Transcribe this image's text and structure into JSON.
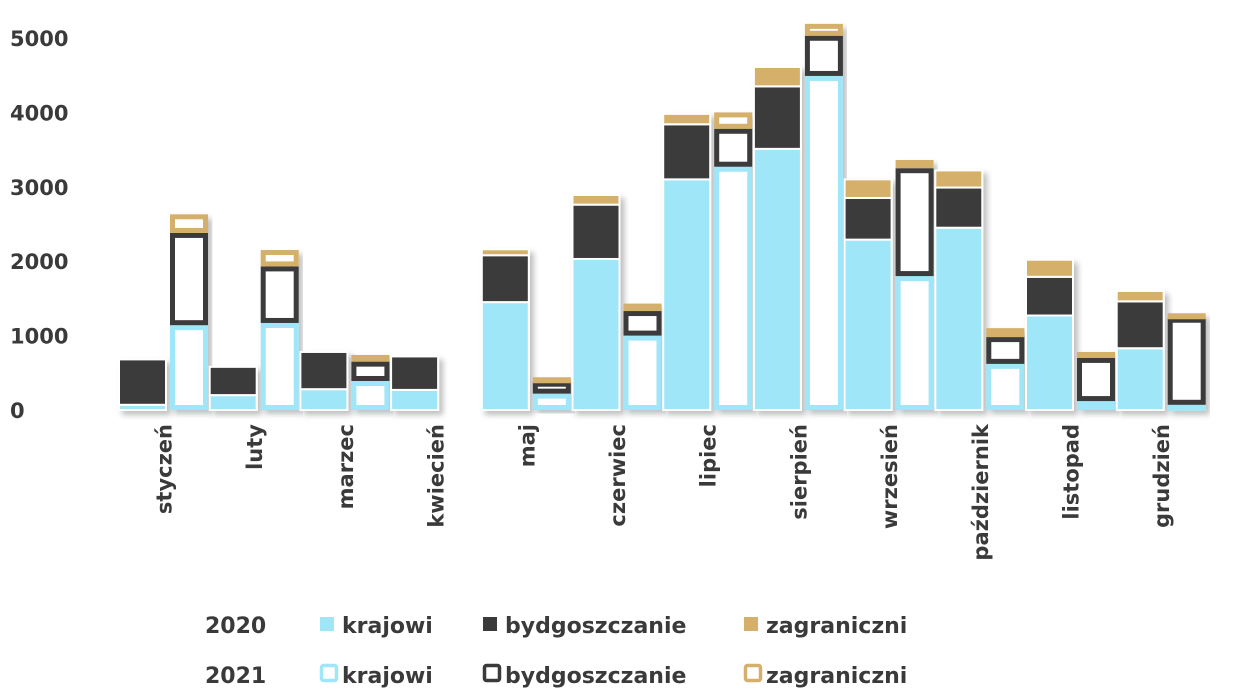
{
  "chart_data": {
    "type": "bar",
    "stacked": true,
    "grouped_by_year": true,
    "categories": [
      "styczeń",
      "luty",
      "marzec",
      "kwiecień",
      "maj",
      "czerwiec",
      "lipiec",
      "sierpień",
      "wrzesień",
      "październik",
      "listopad",
      "grudzień"
    ],
    "yticks": [
      "0",
      "1000",
      "2000",
      "3000",
      "4000",
      "5000"
    ],
    "ylim": [
      0,
      5200
    ],
    "series_names": [
      "krajowi",
      "bydgoszczanie",
      "zagraniczni"
    ],
    "colors": {
      "krajowi": "#9ee6f8",
      "bydgoszczanie": "#3a3a3a",
      "zagraniczni": "#d4b06a"
    },
    "years": [
      {
        "label": "2020",
        "style": "filled",
        "series": [
          {
            "name": "krajowi",
            "values": [
              70,
              200,
              280,
              270,
              1450,
              2030,
              3100,
              3510,
              2290,
              2450,
              1270,
              830
            ]
          },
          {
            "name": "bydgoszczanie",
            "values": [
              610,
              380,
              500,
              450,
              630,
              730,
              740,
              840,
              560,
              540,
              520,
              630
            ]
          },
          {
            "name": "zagraniczni",
            "values": [
              0,
              0,
              0,
              0,
              80,
              130,
              140,
              260,
              250,
              230,
              230,
              140
            ]
          }
        ]
      },
      {
        "label": "2021",
        "style": "outline",
        "series": [
          {
            "name": "krajowi",
            "values": [
              1140,
              1170,
              390,
              0,
              220,
              1000,
              3270,
              4490,
              1800,
              620,
              120,
              70
            ]
          },
          {
            "name": "bydgoszczanie",
            "values": [
              1240,
              760,
              260,
              0,
              160,
              330,
              510,
              540,
              1450,
              360,
              580,
              1170
            ]
          },
          {
            "name": "zagraniczni",
            "values": [
              250,
              220,
              90,
              0,
              60,
              100,
              220,
              160,
              110,
              120,
              80,
              60
            ]
          }
        ]
      }
    ],
    "legend": {
      "placement": "bottom",
      "rows": [
        {
          "year": "2020",
          "style": "filled",
          "items": [
            "krajowi",
            "bydgoszczanie",
            "zagraniczni"
          ]
        },
        {
          "year": "2021",
          "style": "outline",
          "items": [
            "krajowi",
            "bydgoszczanie",
            "zagraniczni"
          ]
        }
      ]
    },
    "grid": false
  }
}
